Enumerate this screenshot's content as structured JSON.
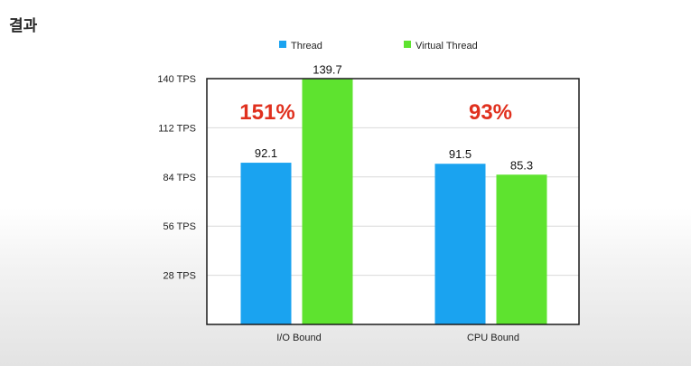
{
  "slide": {
    "title": "결과"
  },
  "chart_data": {
    "type": "bar",
    "categories": [
      "I/O Bound",
      "CPU Bound"
    ],
    "series": [
      {
        "name": "Thread",
        "values": [
          92.1,
          91.5
        ],
        "color": "#1aa3f0"
      },
      {
        "name": "Virtual Thread",
        "values": [
          139.7,
          85.3
        ],
        "color": "#5ee32f"
      }
    ],
    "ylim": [
      0,
      140
    ],
    "yticks": [
      {
        "value": 28,
        "label": "28 TPS"
      },
      {
        "value": 56,
        "label": "56 TPS"
      },
      {
        "value": 84,
        "label": "84 TPS"
      },
      {
        "value": 112,
        "label": "112 TPS"
      },
      {
        "value": 140,
        "label": "140 TPS"
      }
    ],
    "data_labels": [
      [
        "92.1",
        "91.5"
      ],
      [
        "139.7",
        "85.3"
      ]
    ],
    "annotations": [
      {
        "category": "I/O Bound",
        "text": "151%",
        "color": "#e0301e"
      },
      {
        "category": "CPU Bound",
        "text": "93%",
        "color": "#e0301e"
      }
    ],
    "grid": true,
    "legend": "top"
  }
}
